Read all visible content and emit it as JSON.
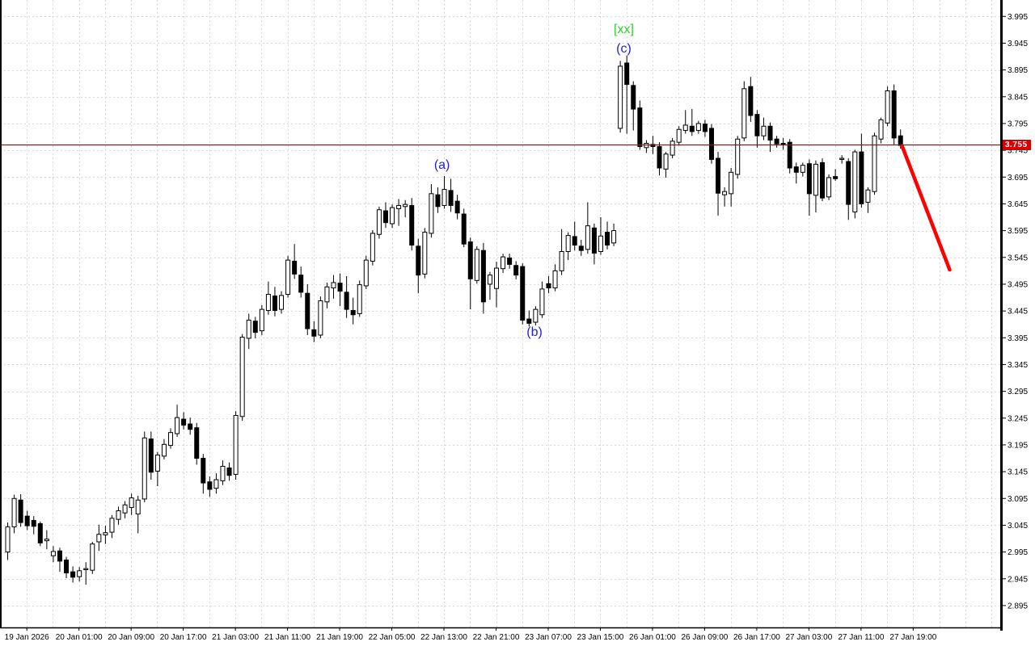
{
  "window": {
    "background": "#ffffff"
  },
  "chart_data": {
    "type": "candlestick",
    "title": "",
    "x_labels": [
      "19 Jan 2026",
      "20 Jan 01:00",
      "20 Jan 09:00",
      "20 Jan 17:00",
      "21 Jan 03:00",
      "21 Jan 11:00",
      "21 Jan 19:00",
      "22 Jan 05:00",
      "22 Jan 13:00",
      "22 Jan 21:00",
      "23 Jan 07:00",
      "23 Jan 15:00",
      "26 Jan 01:00",
      "26 Jan 09:00",
      "26 Jan 17:00",
      "27 Jan 03:00",
      "27 Jan 11:00",
      "27 Jan 19:00"
    ],
    "y_axis_ticks": [
      "3.995",
      "3.945",
      "3.895",
      "3.845",
      "3.795",
      "3.745",
      "3.695",
      "3.645",
      "3.595",
      "3.545",
      "3.495",
      "3.445",
      "3.395",
      "3.345",
      "3.295",
      "3.245",
      "3.195",
      "3.145",
      "3.095",
      "3.045",
      "2.995",
      "2.945",
      "2.895"
    ],
    "ylim": [
      2.862,
      4.026
    ],
    "price_step": 0.05,
    "grid": true,
    "grid_color": "#d9d9d9",
    "bull_color": "#ffffff",
    "bear_color": "#000000",
    "outline_color": "#000000",
    "ohlc": [
      [
        2.995,
        3.05,
        2.98,
        3.042
      ],
      [
        3.042,
        3.102,
        3.03,
        3.095
      ],
      [
        3.092,
        3.103,
        3.042,
        3.05
      ],
      [
        3.062,
        3.072,
        3.036,
        3.044
      ],
      [
        3.054,
        3.062,
        3.028,
        3.043
      ],
      [
        3.048,
        3.052,
        3.006,
        3.012
      ],
      [
        3.016,
        3.036,
        3.0,
        3.019
      ],
      [
        2.988,
        3.006,
        2.976,
        2.996
      ],
      [
        2.997,
        3.003,
        2.958,
        2.978
      ],
      [
        2.98,
        2.986,
        2.946,
        2.956
      ],
      [
        2.958,
        2.968,
        2.938,
        2.948
      ],
      [
        2.949,
        2.967,
        2.94,
        2.96
      ],
      [
        2.962,
        2.976,
        2.934,
        2.964
      ],
      [
        2.961,
        3.014,
        2.954,
        3.01
      ],
      [
        3.014,
        3.046,
        2.997,
        3.028
      ],
      [
        3.027,
        3.044,
        3.01,
        3.031
      ],
      [
        3.032,
        3.064,
        3.021,
        3.058
      ],
      [
        3.056,
        3.08,
        3.046,
        3.072
      ],
      [
        3.068,
        3.09,
        3.058,
        3.083
      ],
      [
        3.078,
        3.104,
        3.064,
        3.096
      ],
      [
        3.066,
        3.1,
        3.03,
        3.092
      ],
      [
        3.094,
        3.22,
        3.088,
        3.208
      ],
      [
        3.206,
        3.22,
        3.13,
        3.144
      ],
      [
        3.146,
        3.182,
        3.118,
        3.176
      ],
      [
        3.174,
        3.206,
        3.168,
        3.196
      ],
      [
        3.194,
        3.226,
        3.188,
        3.218
      ],
      [
        3.216,
        3.27,
        3.21,
        3.246
      ],
      [
        3.243,
        3.256,
        3.224,
        3.232
      ],
      [
        3.234,
        3.246,
        3.214,
        3.224
      ],
      [
        3.227,
        3.236,
        3.158,
        3.17
      ],
      [
        3.17,
        3.178,
        3.104,
        3.124
      ],
      [
        3.126,
        3.136,
        3.098,
        3.112
      ],
      [
        3.114,
        3.142,
        3.104,
        3.13
      ],
      [
        3.128,
        3.166,
        3.12,
        3.155
      ],
      [
        3.152,
        3.162,
        3.128,
        3.138
      ],
      [
        3.14,
        3.258,
        3.13,
        3.25
      ],
      [
        3.248,
        3.402,
        3.24,
        3.396
      ],
      [
        3.394,
        3.44,
        3.374,
        3.428
      ],
      [
        3.426,
        3.434,
        3.394,
        3.405
      ],
      [
        3.408,
        3.456,
        3.4,
        3.448
      ],
      [
        3.446,
        3.5,
        3.438,
        3.476
      ],
      [
        3.473,
        3.49,
        3.435,
        3.446
      ],
      [
        3.448,
        3.482,
        3.44,
        3.474
      ],
      [
        3.476,
        3.548,
        3.47,
        3.54
      ],
      [
        3.538,
        3.57,
        3.505,
        3.514
      ],
      [
        3.512,
        3.528,
        3.47,
        3.48
      ],
      [
        3.478,
        3.495,
        3.4,
        3.412
      ],
      [
        3.41,
        3.426,
        3.387,
        3.398
      ],
      [
        3.4,
        3.472,
        3.394,
        3.464
      ],
      [
        3.462,
        3.498,
        3.45,
        3.49
      ],
      [
        3.488,
        3.512,
        3.468,
        3.498
      ],
      [
        3.497,
        3.515,
        3.454,
        3.482
      ],
      [
        3.48,
        3.51,
        3.432,
        3.448
      ],
      [
        3.446,
        3.47,
        3.42,
        3.438
      ],
      [
        3.44,
        3.502,
        3.434,
        3.494
      ],
      [
        3.492,
        3.548,
        3.486,
        3.54
      ],
      [
        3.538,
        3.596,
        3.53,
        3.59
      ],
      [
        3.588,
        3.64,
        3.58,
        3.634
      ],
      [
        3.632,
        3.648,
        3.6,
        3.61
      ],
      [
        3.608,
        3.644,
        3.6,
        3.638
      ],
      [
        3.636,
        3.654,
        3.604,
        3.642
      ],
      [
        3.64,
        3.652,
        3.62,
        3.644
      ],
      [
        3.642,
        3.656,
        3.558,
        3.568
      ],
      [
        3.566,
        3.58,
        3.478,
        3.512
      ],
      [
        3.514,
        3.6,
        3.506,
        3.592
      ],
      [
        3.59,
        3.682,
        3.582,
        3.664
      ],
      [
        3.662,
        3.676,
        3.628,
        3.64
      ],
      [
        3.642,
        3.697,
        3.636,
        3.672
      ],
      [
        3.67,
        3.692,
        3.63,
        3.642
      ],
      [
        3.65,
        3.662,
        3.616,
        3.628
      ],
      [
        3.626,
        3.636,
        3.564,
        3.57
      ],
      [
        3.574,
        3.582,
        3.448,
        3.505
      ],
      [
        3.502,
        3.566,
        3.496,
        3.56
      ],
      [
        3.558,
        3.572,
        3.44,
        3.462
      ],
      [
        3.495,
        3.518,
        3.466,
        3.512
      ],
      [
        3.487,
        3.537,
        3.452,
        3.525
      ],
      [
        3.524,
        3.552,
        3.516,
        3.546
      ],
      [
        3.544,
        3.552,
        3.524,
        3.532
      ],
      [
        3.53,
        3.538,
        3.504,
        3.512
      ],
      [
        3.528,
        3.534,
        3.42,
        3.428
      ],
      [
        3.43,
        3.446,
        3.416,
        3.422
      ],
      [
        3.424,
        3.454,
        3.418,
        3.448
      ],
      [
        3.438,
        3.5,
        3.432,
        3.486
      ],
      [
        3.496,
        3.51,
        3.478,
        3.488
      ],
      [
        3.488,
        3.532,
        3.482,
        3.52
      ],
      [
        3.52,
        3.598,
        3.512,
        3.556
      ],
      [
        3.556,
        3.592,
        3.54,
        3.586
      ],
      [
        3.584,
        3.612,
        3.558,
        3.568
      ],
      [
        3.566,
        3.578,
        3.548,
        3.558
      ],
      [
        3.56,
        3.648,
        3.552,
        3.604
      ],
      [
        3.6,
        3.608,
        3.532,
        3.553
      ],
      [
        3.556,
        3.62,
        3.55,
        3.585
      ],
      [
        3.592,
        3.612,
        3.56,
        3.568
      ],
      [
        3.572,
        3.608,
        3.566,
        3.595
      ],
      [
        3.786,
        3.912,
        3.778,
        3.902
      ],
      [
        3.908,
        3.922,
        3.776,
        3.868
      ],
      [
        3.866,
        3.874,
        3.782,
        3.822
      ],
      [
        3.824,
        3.838,
        3.746,
        3.752
      ],
      [
        3.75,
        3.764,
        3.74,
        3.758
      ],
      [
        3.756,
        3.772,
        3.738,
        3.752
      ],
      [
        3.752,
        3.76,
        3.698,
        3.712
      ],
      [
        3.71,
        3.742,
        3.694,
        3.738
      ],
      [
        3.736,
        3.768,
        3.73,
        3.762
      ],
      [
        3.76,
        3.79,
        3.754,
        3.784
      ],
      [
        3.782,
        3.82,
        3.776,
        3.792
      ],
      [
        3.79,
        3.822,
        3.772,
        3.78
      ],
      [
        3.782,
        3.8,
        3.776,
        3.795
      ],
      [
        3.794,
        3.802,
        3.77,
        3.78
      ],
      [
        3.786,
        3.794,
        3.72,
        3.728
      ],
      [
        3.73,
        3.742,
        3.623,
        3.665
      ],
      [
        3.662,
        3.676,
        3.64,
        3.668
      ],
      [
        3.664,
        3.712,
        3.64,
        3.704
      ],
      [
        3.7,
        3.772,
        3.692,
        3.766
      ],
      [
        3.768,
        3.874,
        3.762,
        3.86
      ],
      [
        3.864,
        3.882,
        3.798,
        3.81
      ],
      [
        3.812,
        3.82,
        3.75,
        3.772
      ],
      [
        3.772,
        3.806,
        3.764,
        3.79
      ],
      [
        3.79,
        3.797,
        3.742,
        3.764
      ],
      [
        3.766,
        3.772,
        3.75,
        3.757
      ],
      [
        3.758,
        3.768,
        3.746,
        3.755
      ],
      [
        3.76,
        3.766,
        3.702,
        3.712
      ],
      [
        3.714,
        3.722,
        3.683,
        3.704
      ],
      [
        3.704,
        3.722,
        3.696,
        3.717
      ],
      [
        3.72,
        3.728,
        3.623,
        3.664
      ],
      [
        3.661,
        3.726,
        3.629,
        3.719
      ],
      [
        3.722,
        3.73,
        3.65,
        3.656
      ],
      [
        3.658,
        3.7,
        3.652,
        3.694
      ],
      [
        3.696,
        3.71,
        3.688,
        3.692
      ],
      [
        3.728,
        3.736,
        3.72,
        3.73
      ],
      [
        3.724,
        3.73,
        3.615,
        3.644
      ],
      [
        3.63,
        3.746,
        3.618,
        3.742
      ],
      [
        3.742,
        3.776,
        3.638,
        3.645
      ],
      [
        3.648,
        3.676,
        3.628,
        3.671
      ],
      [
        3.668,
        3.778,
        3.662,
        3.772
      ],
      [
        3.766,
        3.806,
        3.758,
        3.802
      ],
      [
        3.796,
        3.864,
        3.79,
        3.856
      ],
      [
        3.856,
        3.868,
        3.756,
        3.768
      ],
      [
        3.772,
        3.784,
        3.748,
        3.754
      ]
    ]
  },
  "price_line": {
    "price": 3.755,
    "label": "3.755",
    "line_color": "#b80000",
    "badge_bg": "#d60000",
    "badge_text_color": "#ffffff"
  },
  "trend_line": {
    "from_index": 137.3,
    "from_price": 3.753,
    "to_index": 144.6,
    "to_price": 3.522,
    "color": "#ff0000",
    "width": 4.5
  },
  "annotations": [
    {
      "id": "xx",
      "text": "[xx]",
      "color": "#33cc33",
      "index": 94.6,
      "price": 3.97
    },
    {
      "id": "c",
      "text": "(c)",
      "color": "#2222dd",
      "index": 94.6,
      "price": 3.934
    },
    {
      "id": "a",
      "text": "(a)",
      "color": "#2222dd",
      "index": 66.7,
      "price": 3.716
    },
    {
      "id": "b",
      "text": "(b)",
      "color": "#2222dd",
      "index": 80.9,
      "price": 3.404
    }
  ],
  "axis": {
    "text_color": "#000000",
    "border_color": "#000000"
  }
}
